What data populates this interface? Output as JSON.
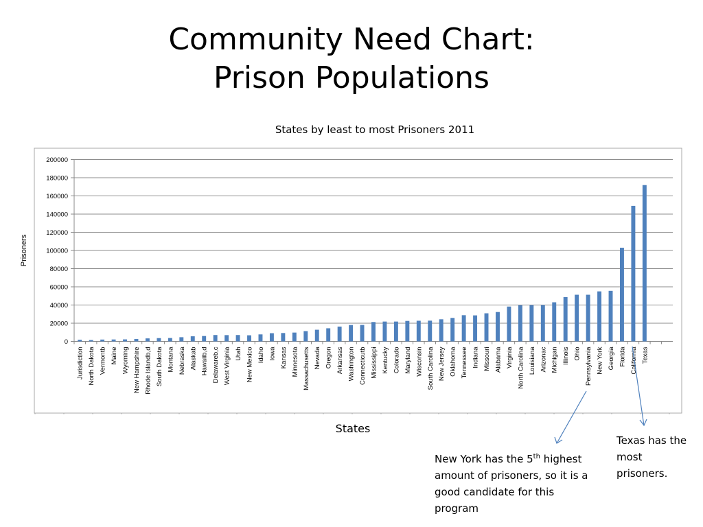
{
  "slide": {
    "title_line1": "Community Need Chart:",
    "title_line2": "Prison Populations"
  },
  "chart_data": {
    "type": "bar",
    "title": "States by least to most Prisoners  2011",
    "xlabel": "States",
    "ylabel": "Prisoners",
    "ylim": [
      0,
      200000
    ],
    "yticks": [
      0,
      20000,
      40000,
      60000,
      80000,
      100000,
      120000,
      140000,
      160000,
      180000,
      200000
    ],
    "grid": true,
    "bar_color": "#4F81BD",
    "categories": [
      "Jurisdiction",
      "North Dakota",
      "Vermontb",
      "Maine",
      "Wyoming",
      "New Hampshire",
      "Rhode Islandb,d",
      "South Dakota",
      "Montana",
      "Nebraska",
      "Alaskab",
      "Hawaiib,d",
      "Delawareb,c",
      "West Virginia",
      "Utah",
      "New Mexico",
      "Idaho",
      "Iowa",
      "Kansas",
      "Minnesota",
      "Massachusetts",
      "Nevada",
      "Oregon",
      "Arkansas",
      "Washington",
      "Connecticutb",
      "Mississippi",
      "Kentucky",
      "Colorado",
      "Maryland",
      "Wisconsin",
      "South Carolina",
      "New Jersey",
      "Oklahoma",
      "Tennessee",
      "Indiana",
      "Missouri",
      "Alabama",
      "Virginia",
      "North Carolina",
      "Louisiana",
      "Arizonac",
      "Michigan",
      "Illinois",
      "Ohio",
      "Pennsylvania",
      "New York",
      "Georgia",
      "Florida",
      "California",
      "Texas",
      "",
      ""
    ],
    "values": [
      1800,
      1500,
      2000,
      2100,
      2200,
      2600,
      3300,
      3600,
      3700,
      4600,
      5600,
      5900,
      7000,
      6900,
      7000,
      6700,
      7700,
      9000,
      9200,
      9700,
      11300,
      12800,
      14400,
      16300,
      18000,
      18100,
      21300,
      21800,
      21800,
      22500,
      22700,
      22800,
      24300,
      25800,
      28800,
      28600,
      30900,
      32300,
      38300,
      39700,
      39800,
      39900,
      43000,
      48700,
      51300,
      51300,
      55000,
      55600,
      103000,
      149100,
      171900,
      null,
      null
    ]
  },
  "annotations": {
    "newyork_prefix": "New York has the 5",
    "newyork_sup": "th",
    "newyork_rest": " highest amount of prisoners, so it is a good candidate for this program",
    "texas": "Texas has the most prisoners."
  }
}
